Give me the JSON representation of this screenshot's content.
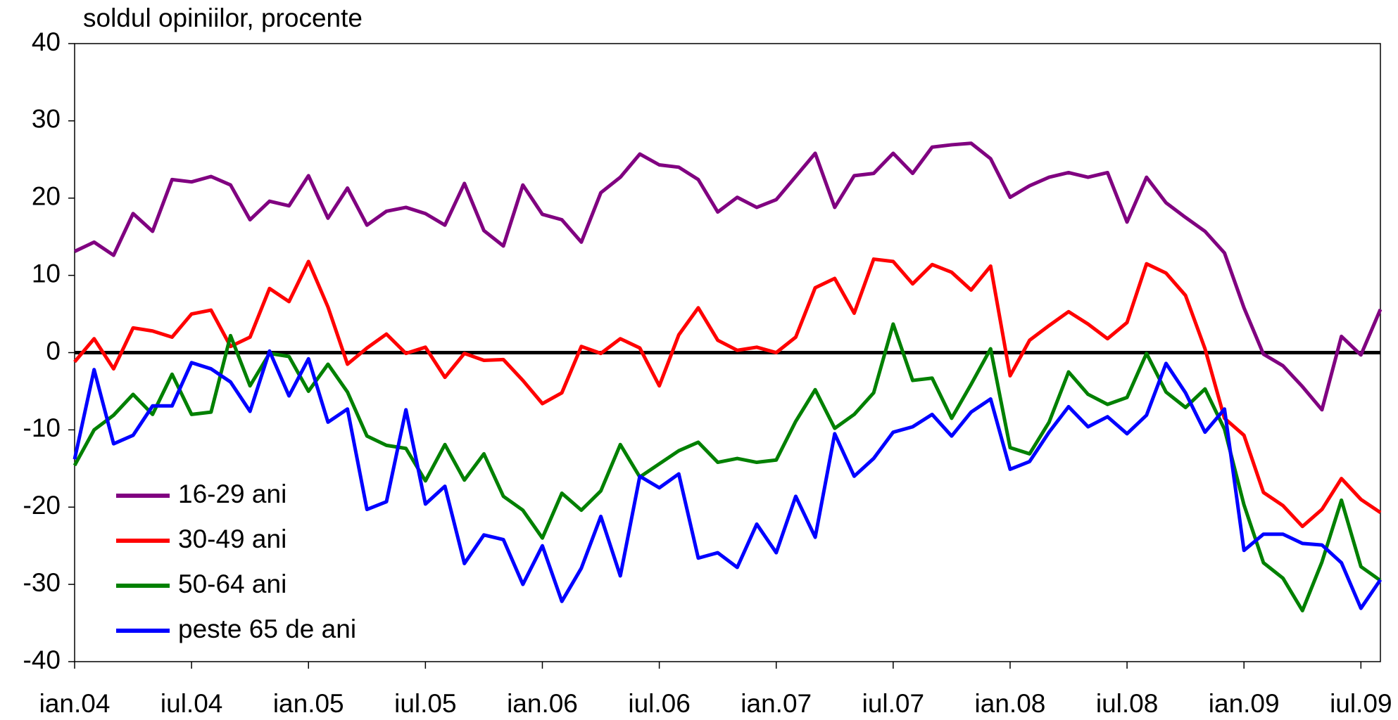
{
  "chart_data": {
    "type": "line",
    "title": "soldul opiniilor, procente",
    "categories": [
      "ian.04",
      null,
      null,
      null,
      null,
      null,
      "iul.04",
      null,
      null,
      null,
      null,
      null,
      "ian.05",
      null,
      null,
      null,
      null,
      null,
      "iul.05",
      null,
      null,
      null,
      null,
      null,
      "ian.06",
      null,
      null,
      null,
      null,
      null,
      "iul.06",
      null,
      null,
      null,
      null,
      null,
      "ian.07",
      null,
      null,
      null,
      null,
      null,
      "iul.07",
      null,
      null,
      null,
      null,
      null,
      "ian.08",
      null,
      null,
      null,
      null,
      null,
      "iul.08",
      null,
      null,
      null,
      null,
      null,
      "ian.09",
      null,
      null,
      null,
      null,
      null,
      "iul.09",
      null
    ],
    "series": [
      {
        "name": "16-29 ani",
        "color": "#800080",
        "values": [
          13.1,
          14.3,
          12.6,
          18.0,
          15.7,
          22.4,
          22.1,
          22.8,
          21.7,
          17.2,
          19.6,
          19.0,
          22.9,
          17.4,
          21.3,
          16.5,
          18.3,
          18.8,
          18.0,
          16.5,
          21.9,
          15.8,
          13.8,
          21.7,
          17.9,
          17.2,
          14.3,
          20.7,
          22.7,
          25.7,
          24.3,
          24.0,
          22.4,
          18.2,
          20.1,
          18.8,
          19.8,
          22.8,
          25.8,
          18.8,
          22.9,
          23.2,
          25.8,
          23.2,
          26.6,
          26.9,
          27.1,
          25.1,
          20.1,
          21.6,
          22.7,
          23.3,
          22.7,
          23.3,
          16.9,
          22.7,
          19.4,
          17.5,
          15.7,
          12.9,
          5.8,
          -0.2,
          -1.7,
          -4.4,
          -7.4,
          2.1,
          -0.3,
          5.6
        ]
      },
      {
        "name": "30-49 ani",
        "color": "#ff0000",
        "values": [
          -1.2,
          1.8,
          -2.1,
          3.2,
          2.8,
          2.0,
          5.0,
          5.5,
          0.8,
          2.0,
          8.3,
          6.6,
          11.8,
          5.9,
          -1.5,
          0.6,
          2.4,
          -0.1,
          0.7,
          -3.2,
          -0.1,
          -1.0,
          -0.9,
          -3.6,
          -6.6,
          -5.2,
          0.8,
          -0.1,
          1.8,
          0.6,
          -4.3,
          2.3,
          5.8,
          1.6,
          0.3,
          0.7,
          0,
          2.0,
          8.4,
          9.6,
          5.1,
          12.1,
          11.8,
          8.9,
          11.4,
          10.4,
          8.1,
          11.2,
          -3.0,
          1.6,
          3.5,
          5.3,
          3.7,
          1.8,
          3.9,
          11.5,
          10.3,
          7.4,
          0.5,
          -8.5,
          -10.7,
          -18.1,
          -19.8,
          -22.5,
          -20.3,
          -16.3,
          -19.0,
          -20.7
        ]
      },
      {
        "name": "50-64 ani",
        "color": "#008000",
        "values": [
          -14.6,
          -10.0,
          -8.1,
          -5.4,
          -8.0,
          -2.8,
          -8.0,
          -7.7,
          2.2,
          -4.3,
          -0.1,
          -0.5,
          -5.0,
          -1.5,
          -5.1,
          -10.8,
          -12.0,
          -12.4,
          -16.6,
          -11.9,
          -16.5,
          -13.1,
          -18.6,
          -20.4,
          -24.0,
          -18.2,
          -20.4,
          -17.9,
          -11.9,
          -16.1,
          -14.4,
          -12.7,
          -11.6,
          -14.2,
          -13.7,
          -14.2,
          -13.9,
          -8.9,
          -4.8,
          -9.8,
          -8.0,
          -5.2,
          3.7,
          -3.6,
          -3.3,
          -8.5,
          -4.1,
          0.5,
          -12.3,
          -13.1,
          -9.0,
          -2.5,
          -5.4,
          -6.7,
          -5.8,
          -0.1,
          -5.1,
          -7.1,
          -4.7,
          -9.9,
          -19.7,
          -27.2,
          -29.2,
          -33.4,
          -27.1,
          -19.1,
          -27.7,
          -29.5
        ]
      },
      {
        "name": "peste 65 de ani",
        "color": "#0000ff",
        "values": [
          -13.8,
          -2.2,
          -11.8,
          -10.7,
          -6.9,
          -6.9,
          -1.3,
          -2.1,
          -3.8,
          -7.6,
          0.2,
          -5.6,
          -0.8,
          -9.0,
          -7.3,
          -20.3,
          -19.3,
          -7.4,
          -19.6,
          -17.3,
          -27.3,
          -23.6,
          -24.2,
          -30.0,
          -25.0,
          -32.2,
          -27.9,
          -21.2,
          -28.9,
          -16.0,
          -17.5,
          -15.7,
          -26.6,
          -25.9,
          -27.8,
          -22.2,
          -25.9,
          -18.6,
          -23.9,
          -10.5,
          -16.0,
          -13.7,
          -10.3,
          -9.6,
          -8.0,
          -10.8,
          -7.7,
          -6.0,
          -15.1,
          -14.1,
          -10.3,
          -7.0,
          -9.6,
          -8.3,
          -10.5,
          -8.1,
          -1.4,
          -5.2,
          -10.3,
          -7.3,
          -25.6,
          -23.5,
          -23.5,
          -24.7,
          -24.9,
          -27.2,
          -33.1,
          -29.4
        ]
      }
    ],
    "ylim": [
      -40,
      40
    ],
    "yticks": [
      -40,
      -30,
      -20,
      -10,
      0,
      10,
      20,
      30,
      40
    ],
    "grid": false,
    "legend": "lower-left"
  }
}
